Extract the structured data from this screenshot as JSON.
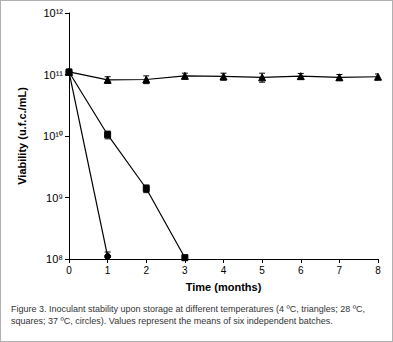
{
  "chart_data": {
    "type": "line",
    "x_label": "Time (months)",
    "y_label": "Viability (u.f.c./mL)",
    "caption": "Figure 3. Inoculant stability upon storage at different temperatures (4 ºC, triangles; 28 ºC, squares; 37 ºC, circles). Values represent the means of six independent batches.",
    "log": "y",
    "grid": false,
    "xlim": [
      0,
      8
    ],
    "xticks": [
      0,
      1,
      2,
      3,
      4,
      5,
      6,
      7,
      8
    ],
    "ylim": [
      100000000,
      1000000000000
    ],
    "yticks": [
      {
        "value": 100000000,
        "label": "10⁸"
      },
      {
        "value": 1000000000,
        "label": "10⁹"
      },
      {
        "value": 10000000000,
        "label": "10¹⁰"
      },
      {
        "value": 100000000000,
        "label": "10¹¹"
      },
      {
        "value": 1000000000000,
        "label": "10¹²"
      }
    ],
    "series": [
      {
        "name": "4 ºC",
        "color": "#000000",
        "marker": "triangle",
        "x": [
          0,
          1,
          2,
          3,
          4,
          5,
          6,
          7,
          8
        ],
        "values": [
          110000000000,
          82000000000,
          83000000000,
          95000000000,
          93000000000,
          90000000000,
          94000000000,
          90000000000,
          92000000000
        ],
        "errors": [
          0,
          10000000000,
          12000000000,
          10000000000,
          12000000000,
          15000000000,
          10000000000,
          10000000000,
          10000000000
        ]
      },
      {
        "name": "28 ºC",
        "color": "#000000",
        "marker": "square",
        "x": [
          0,
          1,
          2,
          3
        ],
        "values": [
          110000000000,
          10500000000,
          1400000000,
          105000000
        ],
        "errors": [
          0,
          1500000000,
          200000000,
          10000000
        ]
      },
      {
        "name": "37 ºC",
        "color": "#000000",
        "marker": "circle",
        "x": [
          0,
          1
        ],
        "values": [
          110000000000,
          110000000
        ],
        "errors": [
          0,
          20000000
        ]
      }
    ]
  }
}
